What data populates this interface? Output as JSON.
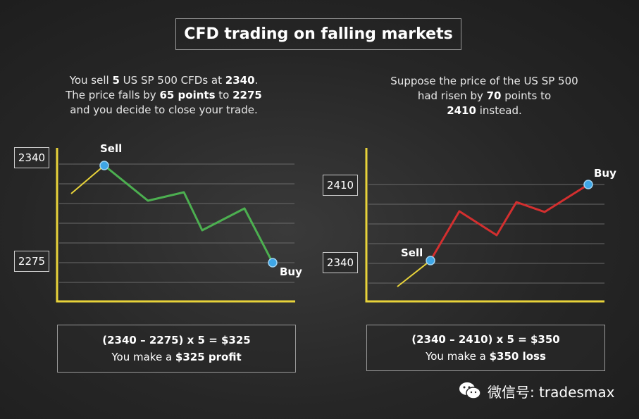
{
  "title": "CFD trading on falling markets",
  "left": {
    "desc": {
      "l1_a": "You sell ",
      "l1_b": "5",
      "l1_c": " US SP 500 CFDs at ",
      "l1_d": "2340",
      "l1_e": ".",
      "l2_a": "The price falls by ",
      "l2_b": "65 points",
      "l2_c": " to ",
      "l2_d": "2275",
      "l3": "and you decide to close your trade."
    },
    "price_high": "2340",
    "price_low": "2275",
    "sell_label": "Sell",
    "buy_label": "Buy",
    "formula": "(2340 – 2275) x 5 = $325",
    "result_a": "You make a ",
    "result_b": "$325 profit"
  },
  "right": {
    "desc": {
      "l1": "Suppose the price of the US SP 500",
      "l2_a": "had risen by ",
      "l2_b": "70",
      "l2_c": " points to",
      "l3_a": "2410",
      "l3_b": " instead."
    },
    "price_high": "2410",
    "price_low": "2340",
    "sell_label": "Sell",
    "buy_label": "Buy",
    "formula": "(2340 – 2410) x 5 = $350",
    "result_a": "You make a ",
    "result_b": "$350 loss"
  },
  "watermark": {
    "icon": "wechat-icon",
    "text": "微信号: tradesmax"
  },
  "colors": {
    "axis": "#e8d33a",
    "gridline": "#6a6a6a",
    "profit_line": "#4caf50",
    "loss_line": "#d32f2f",
    "lead_in": "#e8d33a",
    "marker": "#3ea6e6"
  }
}
